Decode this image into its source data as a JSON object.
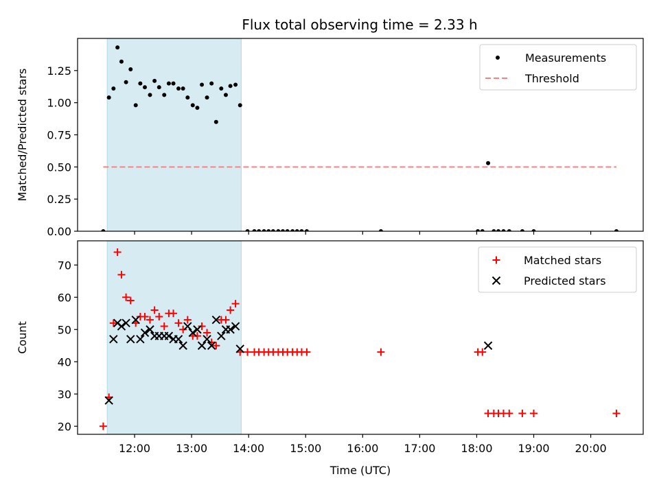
{
  "figure": {
    "title": "Flux total observing time = 2.33 h"
  },
  "chart_data": [
    {
      "type": "scatter",
      "ylabel": "Matched/Predicted stars",
      "xlabel": "",
      "xlim": [
        11.0,
        20.92
      ],
      "ylim": [
        0.0,
        1.5
      ],
      "yticks": [
        0.0,
        0.25,
        0.5,
        0.75,
        1.0,
        1.25
      ],
      "ytick_labels": [
        "0.00",
        "0.25",
        "0.50",
        "0.75",
        "1.00",
        "1.25"
      ],
      "xticks": [
        12,
        13,
        14,
        15,
        16,
        17,
        18,
        19,
        20
      ],
      "xtick_labels": [],
      "shaded_region": {
        "x0": 11.52,
        "x1": 13.87,
        "color": "#add8e6"
      },
      "legend_position": "upper right",
      "series": [
        {
          "name": "Measurements",
          "marker": "dot",
          "color": "#000000",
          "x": [
            11.45,
            11.55,
            11.63,
            11.7,
            11.77,
            11.85,
            11.93,
            12.02,
            12.1,
            12.18,
            12.27,
            12.35,
            12.43,
            12.52,
            12.6,
            12.68,
            12.77,
            12.85,
            12.93,
            13.02,
            13.1,
            13.18,
            13.27,
            13.35,
            13.43,
            13.52,
            13.6,
            13.68,
            13.77,
            13.85,
            13.98,
            14.1,
            14.18,
            14.27,
            14.35,
            14.43,
            14.52,
            14.6,
            14.68,
            14.77,
            14.85,
            14.93,
            15.02,
            16.32,
            18.02,
            18.1,
            18.2,
            18.3,
            18.38,
            18.47,
            18.57,
            18.8,
            19.0,
            20.45
          ],
          "y": [
            0.0,
            1.04,
            1.11,
            1.43,
            1.32,
            1.16,
            1.26,
            0.98,
            1.15,
            1.12,
            1.06,
            1.17,
            1.12,
            1.06,
            1.15,
            1.15,
            1.11,
            1.11,
            1.04,
            0.98,
            0.96,
            1.14,
            1.04,
            1.15,
            0.85,
            1.11,
            1.06,
            1.13,
            1.14,
            0.98,
            0.0,
            0.0,
            0.0,
            0.0,
            0.0,
            0.0,
            0.0,
            0.0,
            0.0,
            0.0,
            0.0,
            0.0,
            0.0,
            0.0,
            0.0,
            0.0,
            0.53,
            0.0,
            0.0,
            0.0,
            0.0,
            0.0,
            0.0,
            0.0
          ]
        },
        {
          "name": "Threshold",
          "marker": "dashed-line",
          "color": "#ff7f7f",
          "x": [
            11.45,
            20.45
          ],
          "y": [
            0.5,
            0.5
          ]
        }
      ]
    },
    {
      "type": "scatter",
      "ylabel": "Count",
      "xlabel": "Time (UTC)",
      "xlim": [
        11.0,
        20.92
      ],
      "ylim": [
        17.5,
        77.5
      ],
      "yticks": [
        20,
        30,
        40,
        50,
        60,
        70
      ],
      "ytick_labels": [
        "20",
        "30",
        "40",
        "50",
        "60",
        "70"
      ],
      "xticks": [
        12,
        13,
        14,
        15,
        16,
        17,
        18,
        19,
        20
      ],
      "xtick_labels": [
        "12:00",
        "13:00",
        "14:00",
        "15:00",
        "16:00",
        "17:00",
        "18:00",
        "19:00",
        "20:00"
      ],
      "shaded_region": {
        "x0": 11.52,
        "x1": 13.87,
        "color": "#add8e6"
      },
      "legend_position": "upper right",
      "series": [
        {
          "name": "Matched stars",
          "marker": "plus",
          "color": "#ff0000",
          "x": [
            11.45,
            11.55,
            11.63,
            11.7,
            11.77,
            11.85,
            11.93,
            12.02,
            12.1,
            12.18,
            12.27,
            12.35,
            12.43,
            12.52,
            12.6,
            12.68,
            12.77,
            12.85,
            12.93,
            13.02,
            13.1,
            13.18,
            13.27,
            13.35,
            13.43,
            13.52,
            13.6,
            13.68,
            13.77,
            13.85,
            13.98,
            14.1,
            14.18,
            14.27,
            14.35,
            14.43,
            14.52,
            14.6,
            14.68,
            14.77,
            14.85,
            14.93,
            15.02,
            16.32,
            18.02,
            18.1,
            18.2,
            18.3,
            18.38,
            18.47,
            18.57,
            18.8,
            19.0,
            20.45
          ],
          "y": [
            20,
            29,
            52,
            74,
            67,
            60,
            59,
            52,
            54,
            54,
            53,
            56,
            54,
            51,
            55,
            55,
            52,
            50,
            53,
            48,
            48,
            51,
            49,
            46,
            45,
            53,
            53,
            56,
            58,
            43,
            43,
            43,
            43,
            43,
            43,
            43,
            43,
            43,
            43,
            43,
            43,
            43,
            43,
            43,
            43,
            43,
            24,
            24,
            24,
            24,
            24,
            24,
            24,
            24
          ]
        },
        {
          "name": "Predicted stars",
          "marker": "x",
          "color": "#000000",
          "x": [
            11.55,
            11.63,
            11.7,
            11.77,
            11.85,
            11.93,
            12.02,
            12.1,
            12.18,
            12.27,
            12.35,
            12.43,
            12.52,
            12.6,
            12.68,
            12.77,
            12.85,
            12.93,
            13.02,
            13.1,
            13.18,
            13.27,
            13.35,
            13.43,
            13.52,
            13.6,
            13.68,
            13.77,
            13.85,
            18.2
          ],
          "y": [
            28,
            47,
            52,
            51,
            52,
            47,
            53,
            47,
            49,
            50,
            48,
            48,
            48,
            48,
            47,
            47,
            45,
            51,
            49,
            50,
            45,
            47,
            45,
            53,
            48,
            50,
            50,
            51,
            44,
            45
          ]
        }
      ]
    }
  ]
}
